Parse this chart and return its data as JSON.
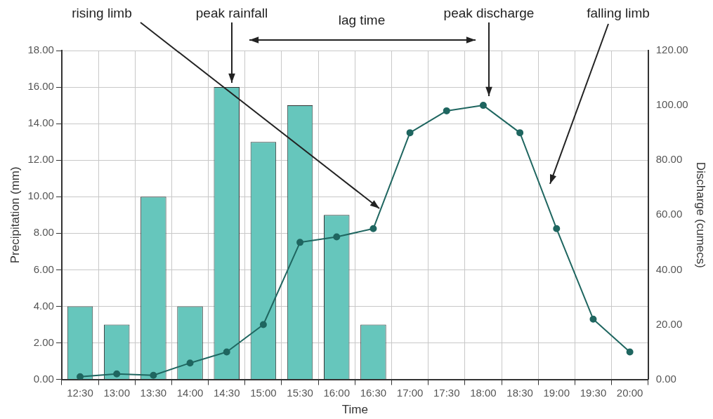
{
  "chart_data": {
    "type": "bar",
    "xlabel": "Time",
    "ylabel": "Precipitation (mm)",
    "y2label": "Discharge (cumecs)",
    "categories": [
      "12:30",
      "13:00",
      "13:30",
      "14:00",
      "14:30",
      "15:00",
      "15:30",
      "16:00",
      "16:30",
      "17:00",
      "17:30",
      "18:00",
      "18:30",
      "19:00",
      "19:30",
      "20:00"
    ],
    "series": [
      {
        "color": "#66c6bc",
        "values": [
          4,
          3,
          10,
          4,
          16,
          13,
          15,
          9,
          3,
          null,
          null,
          null,
          null,
          null,
          null,
          null
        ]
      },
      {
        "type": "line",
        "axis": "y2",
        "color": "#1f6660",
        "values": [
          1,
          2,
          1.5,
          6,
          10,
          20,
          50,
          52,
          55,
          90,
          98,
          100,
          90,
          55,
          22,
          10
        ]
      }
    ],
    "ylim": [
      0,
      18
    ],
    "yticks": [
      {
        "value": 0,
        "label": "0.00"
      },
      {
        "value": 2,
        "label": "2.00"
      },
      {
        "value": 4,
        "label": "4.00"
      },
      {
        "value": 6,
        "label": "6.00"
      },
      {
        "value": 8,
        "label": "8.00"
      },
      {
        "value": 10,
        "label": "10.00"
      },
      {
        "value": 12,
        "label": "12.00"
      },
      {
        "value": 14,
        "label": "14.00"
      },
      {
        "value": 16,
        "label": "16.00"
      },
      {
        "value": 18,
        "label": "18.00"
      }
    ],
    "y2lim": [
      0,
      120
    ],
    "y2ticks": [
      {
        "value": 0,
        "label": "0.00"
      },
      {
        "value": 20,
        "label": "20.00"
      },
      {
        "value": 40,
        "label": "40.00"
      },
      {
        "value": 60,
        "label": "60.00"
      },
      {
        "value": 80,
        "label": "80.00"
      },
      {
        "value": 100,
        "label": "100.00"
      },
      {
        "value": 120,
        "label": "120.00"
      }
    ],
    "annotations": [
      "rising limb",
      "peak rainfall",
      "lag time",
      "peak discharge",
      "falling limb"
    ],
    "grid": true,
    "legend": false,
    "marker": "circle",
    "line_style": "solid"
  }
}
